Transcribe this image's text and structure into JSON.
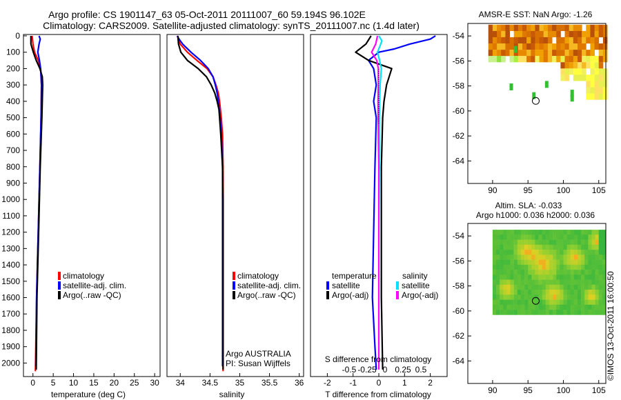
{
  "header": {
    "title_line1": "Argo profile: CS 1901147_63 05-Oct-2011 20111007_60 59.194S 96.102E",
    "title_line2": "Climatology: CARS2009. Satellite-adjusted climatology: synTS_20111007.nc (1.4d later)"
  },
  "colors": {
    "climatology": "#ff0000",
    "satellite": "#0000ff",
    "argo": "#000000",
    "satellite_salinity": "#00e0ff",
    "argo_salinity": "#ff00ff",
    "sst_cold": "#c8f5b4",
    "sst_warm": "#b8500a"
  },
  "chart_data": [
    {
      "id": "temperature",
      "type": "line",
      "xlabel": "temperature (deg C)",
      "ylabel": "",
      "xlim": [
        -2,
        31
      ],
      "ylim": [
        2070,
        0
      ],
      "xticks": [
        "0",
        "5",
        "10",
        "15",
        "20",
        "25",
        "30"
      ],
      "xtick_values": [
        0,
        5,
        10,
        15,
        20,
        25,
        30
      ],
      "yticks": [
        "0",
        "100",
        "200",
        "300",
        "400",
        "500",
        "600",
        "700",
        "800",
        "900",
        "1000",
        "1100",
        "1200",
        "1300",
        "1400",
        "1500",
        "1600",
        "1700",
        "1800",
        "1900",
        "2000"
      ],
      "ytick_values": [
        0,
        100,
        200,
        300,
        400,
        500,
        600,
        700,
        800,
        900,
        1000,
        1100,
        1200,
        1300,
        1400,
        1500,
        1600,
        1700,
        1800,
        1900,
        2000
      ],
      "legend": {
        "position": "lower-center",
        "entries": [
          "climatology",
          "satellite-adj. clim.",
          "Argo(..raw -QC)"
        ]
      },
      "series": [
        {
          "name": "climatology",
          "color": "#ff0000",
          "depth": [
            0,
            50,
            100,
            150,
            200,
            300,
            500,
            800,
            1200,
            1600,
            2050
          ],
          "values": [
            -0.2,
            0.0,
            0.4,
            1.3,
            1.9,
            2.1,
            2.0,
            1.7,
            1.3,
            0.9,
            0.6
          ]
        },
        {
          "name": "satellite-adj. clim.",
          "color": "#0000ff",
          "depth": [
            0,
            20,
            50,
            100,
            150,
            200,
            300,
            500,
            800,
            1200,
            1600,
            2020
          ],
          "values": [
            1.5,
            1.8,
            1.5,
            1.2,
            1.6,
            1.9,
            2.1,
            2.0,
            1.7,
            1.3,
            0.9,
            0.7
          ]
        },
        {
          "name": "Argo(..raw -QC)",
          "color": "#000000",
          "depth": [
            0,
            50,
            100,
            150,
            200,
            250,
            300,
            500,
            800,
            1200,
            1600,
            2040
          ],
          "values": [
            -0.5,
            -0.5,
            0.1,
            0.8,
            1.7,
            2.3,
            2.4,
            2.2,
            1.8,
            1.4,
            1.0,
            0.8
          ]
        }
      ]
    },
    {
      "id": "salinity",
      "type": "line",
      "xlabel": "salinity",
      "ylabel": "",
      "xlim": [
        33.8,
        36.05
      ],
      "ylim": [
        2070,
        0
      ],
      "xticks": [
        "34",
        "34.5",
        "35",
        "35.5",
        "36"
      ],
      "xtick_values": [
        34,
        34.5,
        35,
        35.5,
        36
      ],
      "legend": {
        "position": "lower-right",
        "entries": [
          "climatology",
          "satellite-adj. clim.",
          "Argo(..raw -QC)"
        ]
      },
      "annotation": [
        "Argo AUSTRALIA",
        "PI: Susan Wijffels"
      ],
      "series": [
        {
          "name": "climatology",
          "color": "#ff0000",
          "depth": [
            0,
            50,
            100,
            150,
            200,
            250,
            300,
            350,
            400,
            500,
            600,
            800,
            1000,
            1500,
            2050
          ],
          "values": [
            33.95,
            34.0,
            34.12,
            34.28,
            34.45,
            34.55,
            34.6,
            34.64,
            34.66,
            34.69,
            34.71,
            34.72,
            34.72,
            34.72,
            34.72
          ]
        },
        {
          "name": "satellite-adj. clim.",
          "color": "#0000ff",
          "depth": [
            0,
            20,
            50,
            100,
            150,
            200,
            250,
            300,
            350,
            400,
            500,
            600,
            800,
            1000,
            1500,
            2020
          ],
          "values": [
            33.95,
            33.98,
            34.04,
            34.18,
            34.34,
            34.47,
            34.55,
            34.59,
            34.62,
            34.64,
            34.67,
            34.69,
            34.71,
            34.71,
            34.71,
            34.71
          ]
        },
        {
          "name": "Argo(..raw -QC)",
          "color": "#000000",
          "depth": [
            0,
            50,
            100,
            150,
            200,
            250,
            300,
            350,
            400,
            450,
            500,
            600,
            800,
            1000,
            1500,
            2040
          ],
          "values": [
            33.96,
            33.97,
            34.01,
            34.12,
            34.3,
            34.44,
            34.52,
            34.58,
            34.62,
            34.65,
            34.66,
            34.68,
            34.71,
            34.72,
            34.72,
            34.72
          ]
        }
      ]
    },
    {
      "id": "difference",
      "type": "line",
      "xlabel": "T difference from climatology",
      "top_label": "S difference from climatology",
      "xlim": [
        -2.6,
        2.6
      ],
      "ylim": [
        2070,
        0
      ],
      "xticks": [
        "-2",
        "-1",
        "0",
        "1",
        "2"
      ],
      "xtick_values": [
        -2,
        -1,
        0,
        1,
        2
      ],
      "sticks": [
        "-0.5",
        "-0.25",
        "0",
        "0.25",
        "0.5"
      ],
      "stick_values": [
        -0.5,
        -0.25,
        0,
        0.25,
        0.5
      ],
      "legend": {
        "position": "lower",
        "titles": [
          "temperature",
          "salinity"
        ],
        "entries": [
          "satellite",
          "Argo(-adj)",
          "satellite",
          "Argo(-adj)"
        ]
      },
      "series": [
        {
          "name": "temperature satellite",
          "color": "#0000ff",
          "depth": [
            0,
            20,
            50,
            80,
            100,
            150,
            200,
            300,
            400,
            500,
            800,
            1200,
            1600,
            1900,
            2040
          ],
          "values": [
            2.2,
            2.0,
            1.2,
            0.6,
            0.0,
            -0.4,
            -0.2,
            -0.1,
            -0.2,
            -0.1,
            -0.15,
            -0.2,
            -0.25,
            -0.15,
            -0.1
          ]
        },
        {
          "name": "temperature Argo(-adj)",
          "color": "#000000",
          "depth": [
            0,
            50,
            100,
            150,
            200,
            300,
            400,
            500,
            800,
            1200,
            1600,
            2040
          ],
          "values": [
            -0.3,
            -0.5,
            -0.9,
            -0.4,
            0.5,
            0.3,
            0.2,
            0.15,
            0.1,
            0.1,
            0.1,
            0.15
          ]
        },
        {
          "name": "salinity satellite",
          "color": "#00e0ff",
          "depth": [
            0,
            30,
            60,
            100,
            150,
            200,
            300,
            500,
            800,
            1200,
            1600,
            2040
          ],
          "values": [
            0.0,
            0.12,
            0.05,
            -0.05,
            0.03,
            0.1,
            0.05,
            0.02,
            0.02,
            0.0,
            0.0,
            0.0
          ]
        },
        {
          "name": "salinity Argo(-adj)",
          "color": "#ff00ff",
          "depth": [
            0,
            50,
            100,
            150,
            200,
            300,
            400,
            600,
            800,
            1200,
            1600,
            2040
          ],
          "values": [
            -0.05,
            -0.12,
            -0.28,
            -0.08,
            -0.02,
            -0.02,
            -0.03,
            -0.02,
            0.0,
            0.0,
            0.0,
            0.0
          ]
        }
      ]
    },
    {
      "id": "sst-map",
      "type": "heatmap",
      "title": "AMSR-E SST: NaN Argo: -1.26",
      "xlim": [
        86.5,
        106
      ],
      "ylim": [
        -65.8,
        -53
      ],
      "xticks": [
        "90",
        "95",
        "100",
        "105"
      ],
      "xtick_values": [
        90,
        95,
        100,
        105
      ],
      "yticks": [
        "-54",
        "-56",
        "-58",
        "-60",
        "-62",
        "-64"
      ],
      "ytick_values": [
        -54,
        -56,
        -58,
        -60,
        -62,
        -64
      ],
      "argo_position": {
        "lon": 96.102,
        "lat": -59.194
      }
    },
    {
      "id": "sla-map",
      "type": "heatmap",
      "title_line1": "Altim. SLA: -0.033",
      "title_line2": "Argo h1000: 0.036 h2000: 0.036",
      "xlim": [
        86.5,
        106
      ],
      "ylim": [
        -65.8,
        -53
      ],
      "xticks": [
        "90",
        "95",
        "100",
        "105"
      ],
      "xtick_values": [
        90,
        95,
        100,
        105
      ],
      "yticks": [
        "-54",
        "-56",
        "-58",
        "-60",
        "-62",
        "-64"
      ],
      "ytick_values": [
        -54,
        -56,
        -58,
        -60,
        -62,
        -64
      ],
      "argo_position": {
        "lon": 96.102,
        "lat": -59.194
      }
    }
  ],
  "footer": {
    "watermark": "©IMOS 13-Oct-2011 16:00:50"
  }
}
